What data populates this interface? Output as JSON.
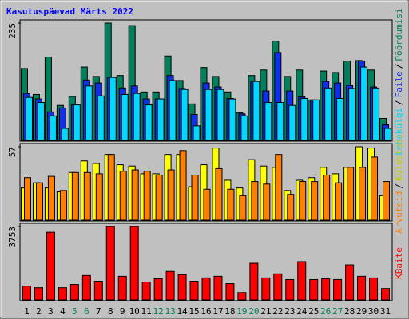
{
  "chart_data": {
    "type": "bar",
    "title": "Kasutuspäevad Märts 2022",
    "categories": [
      "1",
      "2",
      "3",
      "4",
      "5",
      "6",
      "7",
      "8",
      "9",
      "10",
      "11",
      "12",
      "13",
      "14",
      "15",
      "16",
      "17",
      "18",
      "19",
      "20",
      "21",
      "22",
      "23",
      "24",
      "25",
      "26",
      "27",
      "28",
      "29",
      "30",
      "31"
    ],
    "category_colors": [
      "#000000",
      "#000000",
      "#000000",
      "#000000",
      "#00805c",
      "#00805c",
      "#000000",
      "#000000",
      "#000000",
      "#000000",
      "#000000",
      "#00805c",
      "#00805c",
      "#000000",
      "#000000",
      "#000000",
      "#000000",
      "#000000",
      "#00805c",
      "#00805c",
      "#000000",
      "#000000",
      "#000000",
      "#000000",
      "#000000",
      "#00805c",
      "#00805c",
      "#000000",
      "#000000",
      "#000000",
      "#000000"
    ],
    "legend_separator": "/",
    "panels": [
      {
        "ylim": [
          0,
          235
        ],
        "yticks": [
          235
        ],
        "series": [
          {
            "name": "Pöördumisi",
            "color": "#00805c",
            "values": [
              144,
              92,
              167,
              70,
              88,
              147,
              128,
              235,
              130,
              230,
              97,
              97,
              169,
              120,
              73,
              146,
              128,
              97,
              55,
              130,
              141,
              199,
              128,
              141,
              81,
              139,
              136,
              159,
              160,
              141,
              44
            ]
          },
          {
            "name": "Faile",
            "color": "#1030e8",
            "values": [
              94,
              83,
              57,
              65,
              71,
              121,
              115,
              126,
              105,
              109,
              83,
              83,
              130,
              104,
              52,
              115,
              107,
              84,
              53,
              118,
              99,
              176,
              99,
              87,
              81,
              118,
              115,
              110,
              159,
              107,
              31
            ]
          },
          {
            "name": "Lehekülgi",
            "color": "#00d8ff",
            "values": [
              86,
              76,
              49,
              24,
              71,
              109,
              89,
              126,
              92,
              94,
              71,
              83,
              120,
              102,
              29,
              102,
              102,
              83,
              49,
              118,
              76,
              76,
              70,
              84,
              81,
              105,
              84,
              104,
              147,
              105,
              24
            ]
          }
        ]
      },
      {
        "ylim": [
          0,
          57
        ],
        "yticks": [
          57
        ],
        "series": [
          {
            "name": "Külastusi",
            "color": "#ffff00",
            "values": [
              25,
              29,
              25,
              22,
              37,
              46,
              44,
              51,
              43,
              42,
              36,
              36,
              51,
              51,
              26,
              43,
              56,
              31,
              25,
              47,
              42,
              41,
              23,
              31,
              33,
              41,
              36,
              41,
              57,
              56,
              19
            ]
          },
          {
            "name": "Arvuteid",
            "color": "#ff8000",
            "values": [
              33,
              29,
              34,
              23,
              37,
              37,
              36,
              51,
              38,
              39,
              38,
              35,
              39,
              54,
              35,
              24,
              40,
              24,
              19,
              30,
              28,
              51,
              20,
              30,
              30,
              35,
              29,
              41,
              41,
              49,
              30
            ]
          }
        ]
      },
      {
        "ylim": [
          0,
          3753
        ],
        "yticks": [
          3753
        ],
        "series": [
          {
            "name": "KBaite",
            "color": "#ff0000",
            "values": [
              709,
              625,
              3461,
              625,
              792,
              1251,
              959,
              3753,
              1209,
              3753,
              917,
              1084,
              1459,
              1292,
              959,
              1126,
              1209,
              834,
              375,
              1876,
              1126,
              1334,
              1042,
              1959,
              1042,
              1084,
              1042,
              1793,
              1209,
              1126,
              584
            ]
          }
        ]
      }
    ]
  }
}
